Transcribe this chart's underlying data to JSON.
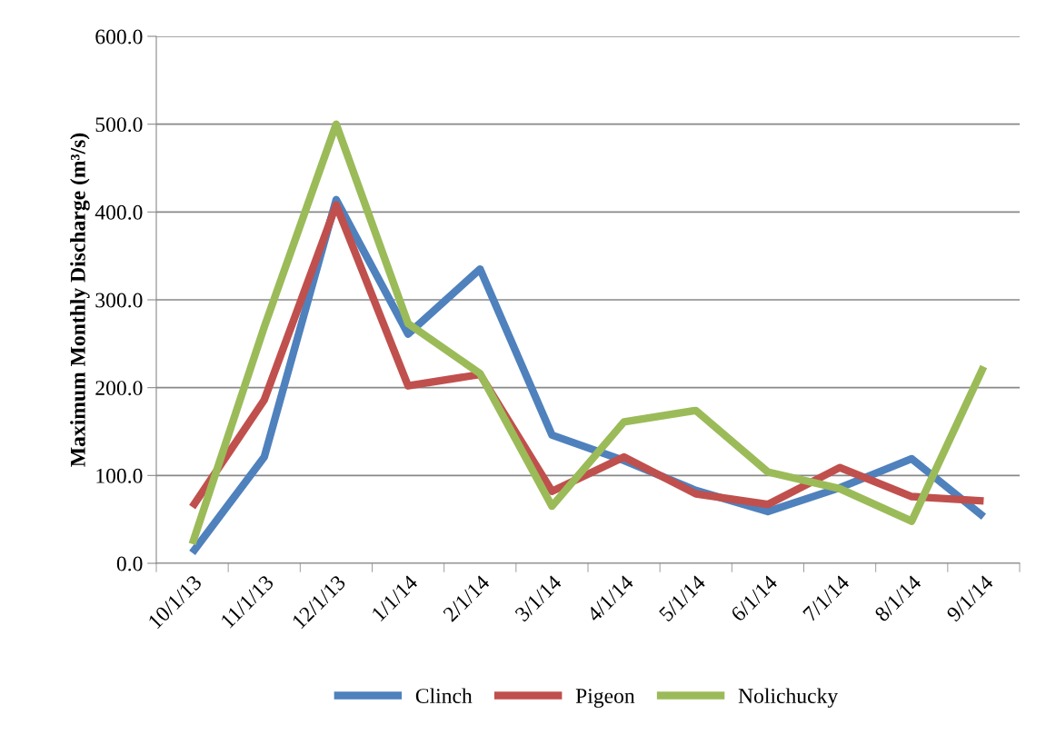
{
  "chart_data": {
    "type": "line",
    "ylabel": "Maximum Monthly Discharge (m³/s)",
    "categories": [
      "10/1/13",
      "11/1/13",
      "12/1/13",
      "1/1/14",
      "2/1/14",
      "3/1/14",
      "4/1/14",
      "5/1/14",
      "6/1/14",
      "7/1/14",
      "8/1/14",
      "9/1/14"
    ],
    "series": [
      {
        "name": "Clinch",
        "color": "#4f81bd",
        "values": [
          12,
          121,
          414,
          261,
          335,
          146,
          117,
          83,
          59,
          86,
          119,
          53
        ]
      },
      {
        "name": "Pigeon",
        "color": "#c0504d",
        "values": [
          64,
          186,
          408,
          202,
          215,
          82,
          121,
          79,
          67,
          109,
          76,
          71
        ]
      },
      {
        "name": "Nolichucky",
        "color": "#9bbb59",
        "values": [
          22,
          269,
          500,
          273,
          216,
          65,
          161,
          174,
          104,
          85,
          48,
          224
        ]
      }
    ],
    "ylim": [
      0,
      600
    ],
    "yticks": [
      {
        "value": 0,
        "label": "0.0"
      },
      {
        "value": 100,
        "label": "100.0"
      },
      {
        "value": 200,
        "label": "200.0"
      },
      {
        "value": 300,
        "label": "300.0"
      },
      {
        "value": 400,
        "label": "400.0"
      },
      {
        "value": 500,
        "label": "500.0"
      },
      {
        "value": 600,
        "label": "600.0"
      }
    ],
    "grid": "y",
    "legend": "bottom",
    "marker": "none",
    "line_style": "solid"
  }
}
